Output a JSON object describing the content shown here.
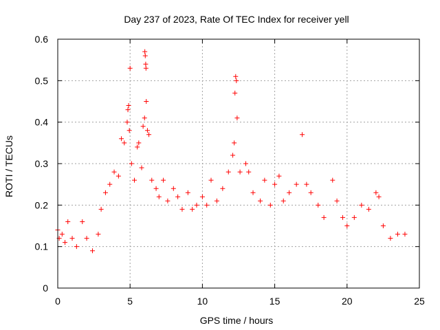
{
  "chart_data": {
    "type": "scatter",
    "title": "Day 237 of 2023, Rate Of TEC Index for receiver yell",
    "xlabel": "GPS time / hours",
    "ylabel": "ROTI / TECUs",
    "xlim": [
      0,
      25
    ],
    "ylim": [
      0,
      0.6
    ],
    "xticks": [
      0,
      5,
      10,
      15,
      20,
      25
    ],
    "xtick_labels": [
      "0",
      "5",
      "10",
      "15",
      "20",
      "25"
    ],
    "yticks": [
      0,
      0.1,
      0.2,
      0.3,
      0.4,
      0.5,
      0.6
    ],
    "ytick_labels": [
      "0",
      "0.1",
      "0.2",
      "0.3",
      "0.4",
      "0.5",
      "0.6"
    ],
    "grid": true,
    "marker": "+",
    "color": "#ff0000",
    "series": [
      {
        "points": [
          [
            0.0,
            0.14
          ],
          [
            0.1,
            0.12
          ],
          [
            0.3,
            0.13
          ],
          [
            0.5,
            0.11
          ],
          [
            0.7,
            0.16
          ],
          [
            1.0,
            0.12
          ],
          [
            1.3,
            0.1
          ],
          [
            1.7,
            0.16
          ],
          [
            2.0,
            0.12
          ],
          [
            2.4,
            0.09
          ],
          [
            2.8,
            0.13
          ],
          [
            3.0,
            0.19
          ],
          [
            3.3,
            0.23
          ],
          [
            3.6,
            0.25
          ],
          [
            3.9,
            0.28
          ],
          [
            4.2,
            0.27
          ],
          [
            4.4,
            0.36
          ],
          [
            4.6,
            0.35
          ],
          [
            4.8,
            0.4
          ],
          [
            4.85,
            0.43
          ],
          [
            4.9,
            0.44
          ],
          [
            4.95,
            0.38
          ],
          [
            5.0,
            0.53
          ],
          [
            5.1,
            0.3
          ],
          [
            5.3,
            0.26
          ],
          [
            5.5,
            0.34
          ],
          [
            5.6,
            0.35
          ],
          [
            5.8,
            0.29
          ],
          [
            5.9,
            0.39
          ],
          [
            6.0,
            0.41
          ],
          [
            6.02,
            0.57
          ],
          [
            6.05,
            0.56
          ],
          [
            6.08,
            0.54
          ],
          [
            6.1,
            0.53
          ],
          [
            6.12,
            0.45
          ],
          [
            6.2,
            0.38
          ],
          [
            6.3,
            0.37
          ],
          [
            6.5,
            0.26
          ],
          [
            6.8,
            0.24
          ],
          [
            7.0,
            0.22
          ],
          [
            7.3,
            0.26
          ],
          [
            7.6,
            0.21
          ],
          [
            8.0,
            0.24
          ],
          [
            8.3,
            0.22
          ],
          [
            8.6,
            0.19
          ],
          [
            9.0,
            0.23
          ],
          [
            9.3,
            0.19
          ],
          [
            9.6,
            0.2
          ],
          [
            10.0,
            0.22
          ],
          [
            10.3,
            0.2
          ],
          [
            10.6,
            0.26
          ],
          [
            11.0,
            0.21
          ],
          [
            11.4,
            0.24
          ],
          [
            11.8,
            0.28
          ],
          [
            12.1,
            0.32
          ],
          [
            12.2,
            0.35
          ],
          [
            12.25,
            0.47
          ],
          [
            12.3,
            0.51
          ],
          [
            12.35,
            0.5
          ],
          [
            12.4,
            0.41
          ],
          [
            12.6,
            0.28
          ],
          [
            13.0,
            0.3
          ],
          [
            13.2,
            0.28
          ],
          [
            13.5,
            0.23
          ],
          [
            14.0,
            0.21
          ],
          [
            14.3,
            0.26
          ],
          [
            14.7,
            0.2
          ],
          [
            15.0,
            0.25
          ],
          [
            15.3,
            0.27
          ],
          [
            15.6,
            0.21
          ],
          [
            16.0,
            0.23
          ],
          [
            16.5,
            0.25
          ],
          [
            16.9,
            0.37
          ],
          [
            17.2,
            0.25
          ],
          [
            17.5,
            0.23
          ],
          [
            18.0,
            0.2
          ],
          [
            18.4,
            0.17
          ],
          [
            19.0,
            0.26
          ],
          [
            19.3,
            0.21
          ],
          [
            19.7,
            0.17
          ],
          [
            20.0,
            0.15
          ],
          [
            20.5,
            0.17
          ],
          [
            21.0,
            0.2
          ],
          [
            21.5,
            0.19
          ],
          [
            22.0,
            0.23
          ],
          [
            22.2,
            0.22
          ],
          [
            22.5,
            0.15
          ],
          [
            23.0,
            0.12
          ],
          [
            23.5,
            0.13
          ],
          [
            24.0,
            0.13
          ]
        ]
      }
    ]
  }
}
